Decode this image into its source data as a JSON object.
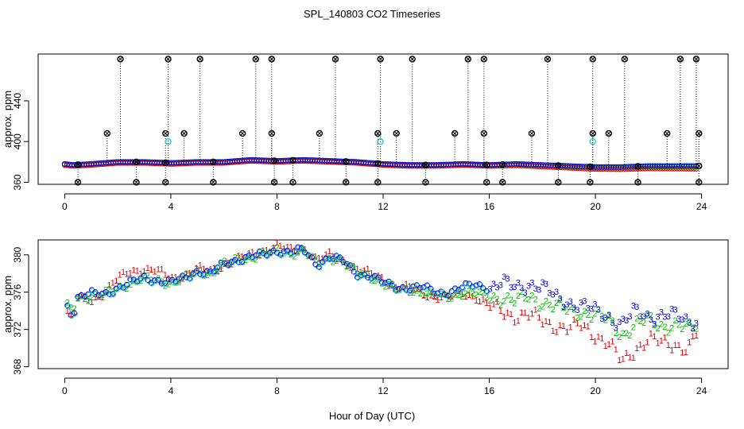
{
  "title": "SPL_140803  CO2 Timeseries",
  "colors": {
    "series1": "#dd0000",
    "series2": "#00bb00",
    "series3": "#0000dd",
    "spike": "#000000",
    "cyan": "#22c8c8",
    "axis": "#000000"
  },
  "chart_data": [
    {
      "type": "scatter",
      "panel": "top",
      "title": "SPL_140803  CO2 Timeseries",
      "xlabel": "",
      "ylabel": "approx. ppm",
      "xlim": [
        -1,
        25
      ],
      "ylim": [
        358,
        486
      ],
      "xticks": [
        0,
        4,
        8,
        12,
        16,
        20,
        24
      ],
      "xtick_labels": [
        "0",
        "4",
        "8",
        "12",
        "16",
        "20",
        "24"
      ],
      "yticks": [
        360,
        400,
        440
      ],
      "ytick_labels": [
        "360",
        "400",
        "440"
      ],
      "baseline": [
        [
          0.0,
          378
        ],
        [
          0.3,
          377
        ],
        [
          1.0,
          378
        ],
        [
          2.0,
          380
        ],
        [
          3.0,
          380
        ],
        [
          4.0,
          379
        ],
        [
          5.0,
          380
        ],
        [
          6.0,
          380
        ],
        [
          7.0,
          382
        ],
        [
          8.0,
          381
        ],
        [
          9.0,
          382
        ],
        [
          10.0,
          381
        ],
        [
          11.0,
          380
        ],
        [
          12.0,
          378
        ],
        [
          13.0,
          377
        ],
        [
          14.0,
          377
        ],
        [
          15.0,
          378
        ],
        [
          16.0,
          377
        ],
        [
          17.0,
          378
        ],
        [
          18.0,
          377
        ],
        [
          19.0,
          376
        ],
        [
          20.0,
          375
        ],
        [
          21.0,
          375
        ],
        [
          22.0,
          376
        ],
        [
          23.0,
          376
        ],
        [
          23.8,
          376
        ]
      ],
      "spikes_high": [
        2.1,
        3.9,
        5.1,
        7.2,
        7.8,
        10.2,
        11.9,
        13.1,
        15.2,
        15.8,
        18.2,
        19.9,
        21.1,
        23.2,
        23.8
      ],
      "spikes_mid": [
        1.6,
        3.8,
        4.5,
        6.7,
        7.8,
        9.6,
        11.8,
        12.5,
        14.7,
        15.8,
        17.6,
        19.9,
        20.5,
        22.7,
        23.9
      ],
      "spikes_low": [
        0.5,
        2.7,
        3.8,
        5.6,
        7.9,
        8.6,
        10.6,
        11.8,
        13.6,
        15.9,
        16.5,
        18.6,
        19.8,
        21.6,
        23.9
      ],
      "cyan_points": [
        [
          3.9,
          400
        ],
        [
          11.9,
          400
        ],
        [
          19.9,
          400
        ]
      ],
      "spike_high_value": 481,
      "spike_mid_value": 408,
      "spike_low_value": 360
    },
    {
      "type": "scatter",
      "panel": "bottom",
      "xlabel": "Hour of Day (UTC)",
      "ylabel": "approx. ppm",
      "xlim": [
        -1,
        25
      ],
      "ylim": [
        367.8,
        381.6
      ],
      "xticks": [
        0,
        4,
        8,
        12,
        16,
        20,
        24
      ],
      "xtick_labels": [
        "0",
        "4",
        "8",
        "12",
        "16",
        "20",
        "24"
      ],
      "yticks": [
        368,
        372,
        376,
        380
      ],
      "ytick_labels": [
        "368",
        "372",
        "376",
        "380"
      ],
      "legend": [
        "1",
        "2",
        "3"
      ],
      "series": [
        {
          "name": "1",
          "symbol": "1",
          "points": [
            [
              0.1,
              374.0
            ],
            [
              0.3,
              373.0
            ],
            [
              0.5,
              375.5
            ],
            [
              1.0,
              375.2
            ],
            [
              1.5,
              376.0
            ],
            [
              2.0,
              377.5
            ],
            [
              2.5,
              378.3
            ],
            [
              3.0,
              378.5
            ],
            [
              3.5,
              378.3
            ],
            [
              4.0,
              377.5
            ],
            [
              4.5,
              377.8
            ],
            [
              5.0,
              378.5
            ],
            [
              5.5,
              378.3
            ],
            [
              6.0,
              379.0
            ],
            [
              6.5,
              379.5
            ],
            [
              7.0,
              380.0
            ],
            [
              7.5,
              380.5
            ],
            [
              8.0,
              381.0
            ],
            [
              8.5,
              380.5
            ],
            [
              9.0,
              380.8
            ],
            [
              9.5,
              379.5
            ],
            [
              10.0,
              380.0
            ],
            [
              10.5,
              379.5
            ],
            [
              11.0,
              378.5
            ],
            [
              11.5,
              378.0
            ],
            [
              12.0,
              377.5
            ],
            [
              12.5,
              376.5
            ],
            [
              13.0,
              376.5
            ],
            [
              13.5,
              376.0
            ],
            [
              14.0,
              375.5
            ],
            [
              14.5,
              375.5
            ],
            [
              15.0,
              376.0
            ],
            [
              15.5,
              375.5
            ],
            [
              16.0,
              374.5
            ],
            [
              16.5,
              374.0
            ],
            [
              17.0,
              373.5
            ],
            [
              17.5,
              373.5
            ],
            [
              18.0,
              373.0
            ],
            [
              18.5,
              372.5
            ],
            [
              19.0,
              372.0
            ],
            [
              19.5,
              372.5
            ],
            [
              20.0,
              371.5
            ],
            [
              20.5,
              370.5
            ],
            [
              21.0,
              368.5
            ],
            [
              21.5,
              370.0
            ],
            [
              22.0,
              371.0
            ],
            [
              22.5,
              370.5
            ],
            [
              23.0,
              370.5
            ],
            [
              23.5,
              370.0
            ],
            [
              23.8,
              371.5
            ]
          ]
        },
        {
          "name": "2",
          "symbol": "2",
          "points": [
            [
              0.1,
              374.5
            ],
            [
              0.3,
              374.0
            ],
            [
              0.5,
              375.5
            ],
            [
              1.0,
              375.5
            ],
            [
              1.5,
              375.8
            ],
            [
              2.0,
              376.5
            ],
            [
              2.5,
              377.0
            ],
            [
              3.0,
              377.5
            ],
            [
              3.5,
              377.3
            ],
            [
              4.0,
              377.0
            ],
            [
              4.5,
              377.5
            ],
            [
              5.0,
              378.3
            ],
            [
              5.5,
              378.0
            ],
            [
              6.0,
              379.0
            ],
            [
              6.5,
              379.5
            ],
            [
              7.0,
              379.8
            ],
            [
              7.5,
              380.0
            ],
            [
              8.0,
              380.5
            ],
            [
              8.5,
              380.2
            ],
            [
              9.0,
              380.5
            ],
            [
              9.5,
              379.0
            ],
            [
              10.0,
              379.8
            ],
            [
              10.5,
              379.3
            ],
            [
              11.0,
              378.0
            ],
            [
              11.5,
              377.8
            ],
            [
              12.0,
              377.0
            ],
            [
              12.5,
              376.3
            ],
            [
              13.0,
              376.3
            ],
            [
              13.5,
              376.0
            ],
            [
              14.0,
              375.5
            ],
            [
              14.5,
              375.5
            ],
            [
              15.0,
              376.0
            ],
            [
              15.5,
              375.8
            ],
            [
              16.0,
              375.5
            ],
            [
              16.5,
              375.5
            ],
            [
              17.0,
              375.0
            ],
            [
              17.5,
              375.5
            ],
            [
              18.0,
              375.0
            ],
            [
              18.5,
              374.5
            ],
            [
              19.0,
              374.0
            ],
            [
              19.5,
              374.0
            ],
            [
              20.0,
              373.5
            ],
            [
              20.5,
              373.0
            ],
            [
              21.0,
              371.5
            ],
            [
              21.5,
              372.5
            ],
            [
              22.0,
              373.0
            ],
            [
              22.5,
              372.5
            ],
            [
              23.0,
              372.5
            ],
            [
              23.5,
              372.0
            ],
            [
              23.8,
              372.5
            ]
          ]
        },
        {
          "name": "3",
          "symbol": "3",
          "points": [
            [
              0.1,
              374.5
            ],
            [
              0.3,
              373.5
            ],
            [
              0.5,
              375.5
            ],
            [
              1.0,
              375.8
            ],
            [
              1.5,
              375.8
            ],
            [
              2.0,
              376.5
            ],
            [
              2.5,
              377.0
            ],
            [
              3.0,
              377.5
            ],
            [
              3.5,
              377.3
            ],
            [
              4.0,
              377.0
            ],
            [
              4.5,
              377.5
            ],
            [
              5.0,
              378.3
            ],
            [
              5.5,
              378.0
            ],
            [
              6.0,
              379.0
            ],
            [
              6.5,
              379.5
            ],
            [
              7.0,
              379.8
            ],
            [
              7.5,
              380.0
            ],
            [
              8.0,
              380.5
            ],
            [
              8.5,
              380.3
            ],
            [
              9.0,
              380.5
            ],
            [
              9.5,
              379.0
            ],
            [
              10.0,
              379.8
            ],
            [
              10.5,
              379.3
            ],
            [
              11.0,
              378.0
            ],
            [
              11.5,
              377.8
            ],
            [
              12.0,
              377.0
            ],
            [
              12.5,
              376.5
            ],
            [
              13.0,
              376.5
            ],
            [
              13.5,
              376.5
            ],
            [
              14.0,
              376.0
            ],
            [
              14.5,
              376.0
            ],
            [
              15.0,
              376.5
            ],
            [
              15.5,
              376.8
            ],
            [
              16.0,
              376.5
            ],
            [
              16.5,
              377.0
            ],
            [
              17.0,
              376.5
            ],
            [
              17.5,
              377.0
            ],
            [
              18.0,
              376.5
            ],
            [
              18.5,
              375.5
            ],
            [
              19.0,
              375.0
            ],
            [
              19.5,
              374.5
            ],
            [
              20.0,
              374.0
            ],
            [
              20.5,
              373.5
            ],
            [
              21.0,
              372.5
            ],
            [
              21.5,
              374.0
            ],
            [
              22.0,
              373.5
            ],
            [
              22.5,
              373.5
            ],
            [
              23.0,
              373.5
            ],
            [
              23.5,
              373.0
            ],
            [
              23.8,
              373.0
            ]
          ]
        }
      ]
    }
  ]
}
